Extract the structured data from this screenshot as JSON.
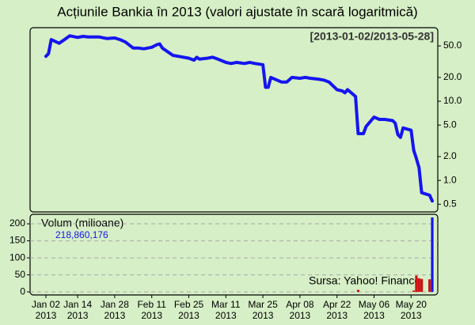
{
  "chart_data": [
    {
      "type": "line",
      "title": "Acțiunile Bankia în 2013 (valori ajustate în scară logaritmică)",
      "date_range": "[2013-01-02/2013-05-28]",
      "log_scale": true,
      "color": "#1515f0",
      "x": [
        "2013-01-02",
        "2013-01-03",
        "2013-01-04",
        "2013-01-07",
        "2013-01-09",
        "2013-01-11",
        "2013-01-14",
        "2013-01-16",
        "2013-01-18",
        "2013-01-22",
        "2013-01-25",
        "2013-01-28",
        "2013-01-30",
        "2013-02-01",
        "2013-02-04",
        "2013-02-06",
        "2013-02-08",
        "2013-02-11",
        "2013-02-13",
        "2013-02-14",
        "2013-02-15",
        "2013-02-19",
        "2013-02-21",
        "2013-02-25",
        "2013-02-27",
        "2013-02-28",
        "2013-03-01",
        "2013-03-04",
        "2013-03-06",
        "2013-03-08",
        "2013-03-11",
        "2013-03-13",
        "2013-03-15",
        "2013-03-18",
        "2013-03-20",
        "2013-03-22",
        "2013-03-25",
        "2013-03-26",
        "2013-03-27",
        "2013-03-28",
        "2013-04-01",
        "2013-04-03",
        "2013-04-05",
        "2013-04-08",
        "2013-04-10",
        "2013-04-12",
        "2013-04-15",
        "2013-04-17",
        "2013-04-19",
        "2013-04-22",
        "2013-04-24",
        "2013-04-25",
        "2013-04-26",
        "2013-04-29",
        "2013-04-30",
        "2013-05-02",
        "2013-05-03",
        "2013-05-06",
        "2013-05-08",
        "2013-05-10",
        "2013-05-13",
        "2013-05-14",
        "2013-05-15",
        "2013-05-16",
        "2013-05-17",
        "2013-05-20",
        "2013-05-21",
        "2013-05-22",
        "2013-05-23",
        "2013-05-24",
        "2013-05-27",
        "2013-05-28"
      ],
      "values": [
        37,
        40,
        60,
        54,
        60,
        67,
        64,
        66,
        65,
        65,
        62,
        63,
        60,
        56,
        47,
        47,
        46,
        48,
        52,
        53,
        47,
        38,
        37,
        35,
        33,
        36,
        34,
        35,
        36,
        34,
        31,
        30,
        31,
        30,
        31,
        30,
        29,
        15,
        15,
        20,
        17.5,
        17.5,
        20,
        19.5,
        20,
        19.5,
        19,
        18.5,
        17.5,
        14,
        13.5,
        12.8,
        14,
        11.5,
        3.9,
        3.9,
        4.8,
        6.3,
        5.9,
        5.9,
        5.7,
        5.3,
        3.8,
        3.5,
        4.6,
        4.3,
        2.4,
        1.9,
        1.45,
        0.7,
        0.65,
        0.55
      ],
      "ylim": [
        0.4,
        85
      ],
      "yticks": [
        {
          "value": 50,
          "label": "50.0"
        },
        {
          "value": 20,
          "label": "20.0"
        },
        {
          "value": 10,
          "label": "10.0"
        },
        {
          "value": 5,
          "label": "5.0"
        },
        {
          "value": 2,
          "label": "2.0"
        },
        {
          "value": 1,
          "label": "1.0"
        },
        0.5
      ],
      "xticks": [
        {
          "value": "2013-01-02",
          "label": "Jan 02",
          "year": "2013"
        },
        {
          "value": "2013-01-14",
          "label": "Jan 14",
          "year": "2013"
        },
        {
          "value": "2013-01-28",
          "label": "Jan 28",
          "year": "2013"
        },
        {
          "value": "2013-02-11",
          "label": "Feb 11",
          "year": "2013"
        },
        {
          "value": "2013-02-25",
          "label": "Feb 25",
          "year": "2013"
        },
        {
          "value": "2013-03-11",
          "label": "Mar 11",
          "year": "2013"
        },
        {
          "value": "2013-03-25",
          "label": "Mar 25",
          "year": "2013"
        },
        {
          "value": "2013-04-08",
          "label": "Apr 08",
          "year": "2013"
        },
        {
          "value": "2013-04-22",
          "label": "Apr 22",
          "year": "2013"
        },
        {
          "value": "2013-05-06",
          "label": "May 06",
          "year": "2013"
        },
        {
          "value": "2013-05-20",
          "label": "May 20",
          "year": "2013"
        }
      ]
    },
    {
      "type": "bar",
      "label": "Volum (milioane)",
      "source": "Sursa: Yahoo! Finance",
      "x": [
        "2013-04-30",
        "2013-05-21",
        "2013-05-22",
        "2013-05-23",
        "2013-05-24",
        "2013-05-27",
        "2013-05-28"
      ],
      "values": [
        6,
        4,
        48,
        40,
        38,
        37,
        218.860176
      ],
      "value_labels": [
        null,
        null,
        null,
        null,
        null,
        null,
        "218,860,176"
      ],
      "colors": [
        "#cc1111",
        "#cc1111",
        "#cc1111",
        "#cc1111",
        "#cc1111",
        "#cc1111",
        "#1515f0"
      ],
      "ylim": [
        -9,
        228
      ],
      "yticks": [
        0,
        50,
        100,
        150,
        200
      ],
      "grid": true
    }
  ]
}
